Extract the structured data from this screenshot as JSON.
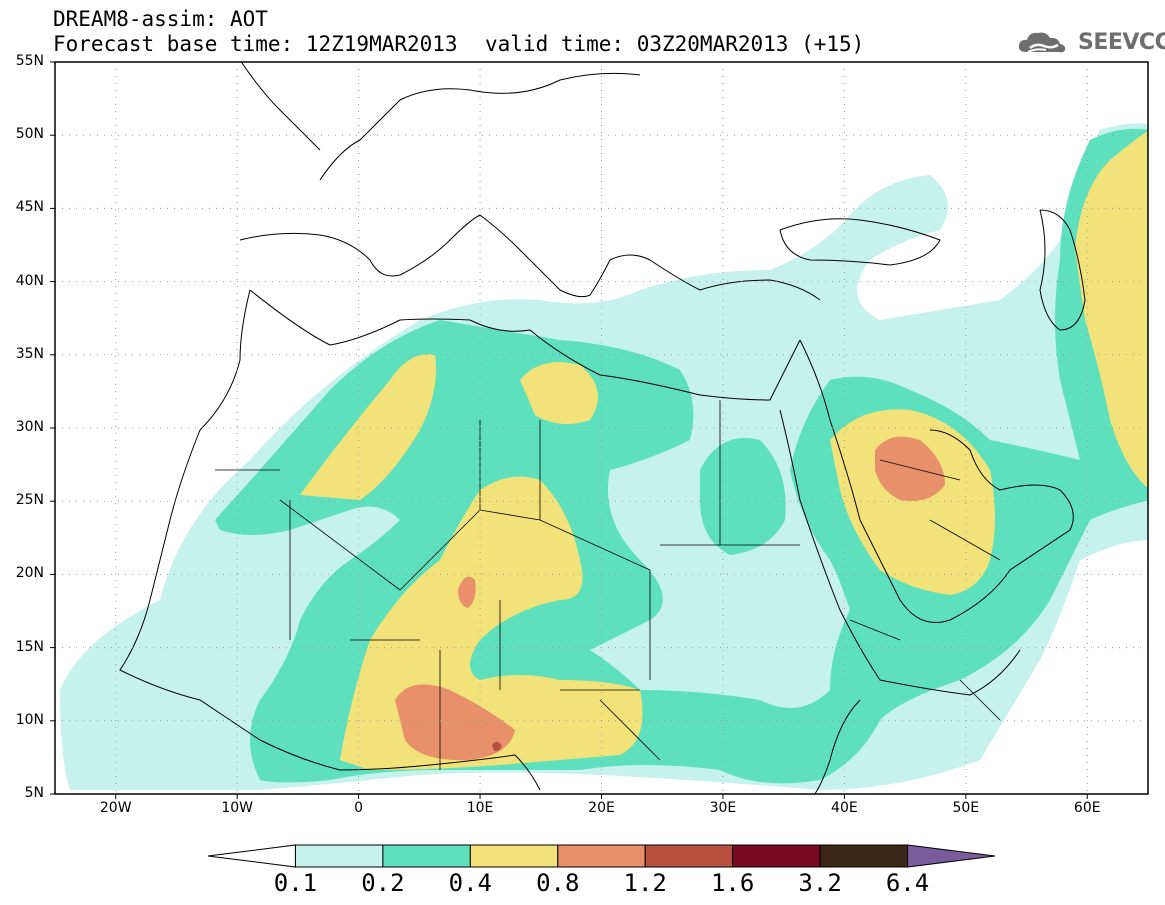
{
  "header": {
    "title_line1": "DREAM8-assim: AOT",
    "title_line2": "Forecast base time: 12Z19MAR2013",
    "valid_time": "valid time: 03Z20MAR2013 (+15)",
    "logo_text": "SEEVCCC"
  },
  "map": {
    "projection": "lat-lon",
    "lon_range": [
      -25,
      65
    ],
    "lat_range": [
      5,
      55
    ],
    "lat_labels": [
      "55N",
      "50N",
      "45N",
      "40N",
      "35N",
      "30N",
      "25N",
      "20N",
      "15N",
      "10N",
      "5N"
    ],
    "lat_values": [
      55,
      50,
      45,
      40,
      35,
      30,
      25,
      20,
      15,
      10,
      5
    ],
    "lon_labels": [
      "20W",
      "10W",
      "0",
      "10E",
      "20E",
      "30E",
      "40E",
      "50E",
      "60E"
    ],
    "lon_values": [
      -20,
      -10,
      0,
      10,
      20,
      30,
      40,
      50,
      60
    ],
    "grid": "dotted"
  },
  "colorbar": {
    "colors": [
      "#ffffff",
      "#c6f2ec",
      "#5ee0bd",
      "#f2e27a",
      "#e8906a",
      "#b85040",
      "#7a0a20",
      "#3b2618",
      "#7a5c9c"
    ],
    "labels": [
      "0.1",
      "0.2",
      "0.4",
      "0.8",
      "1.2",
      "1.6",
      "3.2",
      "6.4"
    ]
  }
}
